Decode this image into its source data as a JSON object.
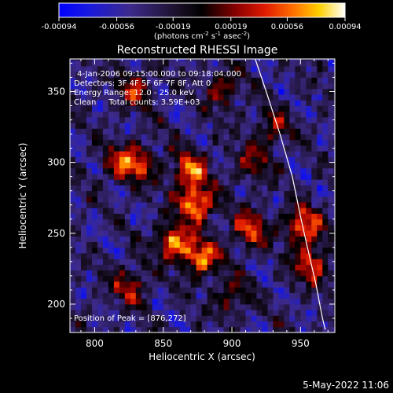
{
  "chart_data": {
    "type": "heatmap",
    "title": "Reconstructed RHESSI Image",
    "xlabel": "Heliocentric X (arcsec)",
    "ylabel": "Heliocentric Y (arcsec)",
    "x_ticks": [
      800,
      850,
      900,
      950
    ],
    "x_tick_labels": [
      "800",
      "850",
      "900",
      "950"
    ],
    "y_ticks": [
      200,
      250,
      300,
      350
    ],
    "y_tick_labels": [
      "200",
      "250",
      "300",
      "350"
    ],
    "xlim": [
      782,
      975
    ],
    "ylim": [
      180,
      373
    ],
    "colorbar": {
      "colormap": "blue-black-red-yellow-white",
      "range": [
        -0.00094,
        0.00094
      ],
      "tick_values": [
        -0.00094,
        -0.00056,
        -0.00019,
        0.00019,
        0.00056,
        0.00094
      ],
      "tick_labels": [
        "-0.00094",
        "-0.00056",
        "-0.00019",
        "0.00019",
        "0.00056",
        "0.00094"
      ],
      "units_main": "(photons cm",
      "units_exp1": "-2",
      "units_mid": " s",
      "units_exp2": "-1",
      "units_end": " asec",
      "units_exp3": "-2",
      "units_close": ")"
    },
    "annotations": {
      "time": "4-Jan-2006 09:15:00.000 to 09:18:04.000",
      "detectors": "Detectors: 3F 4F 5F 6F 7F 8F, Att 0",
      "energy": "Energy Range: 12.0 - 25.0 keV",
      "clean": "Clean     Total counts: 3.59E+03",
      "peak": "Position of Peak = [876,272]"
    },
    "peak_position": [
      876,
      272
    ],
    "solar_limb": [
      [
        917,
        373
      ],
      [
        925,
        350
      ],
      [
        935,
        320
      ],
      [
        944,
        290
      ],
      [
        950,
        262
      ],
      [
        955,
        240
      ],
      [
        961,
        215
      ],
      [
        966,
        190
      ],
      [
        968,
        182
      ]
    ],
    "bright_sources": [
      {
        "x": 874,
        "y": 272,
        "level": 1.0
      },
      {
        "x": 869,
        "y": 295,
        "level": 0.75
      },
      {
        "x": 858,
        "y": 244,
        "level": 0.85
      },
      {
        "x": 878,
        "y": 233,
        "level": 0.85
      },
      {
        "x": 913,
        "y": 253,
        "level": 0.7
      },
      {
        "x": 952,
        "y": 255,
        "level": 0.85
      },
      {
        "x": 958,
        "y": 228,
        "level": 0.7
      },
      {
        "x": 833,
        "y": 300,
        "level": 0.6
      },
      {
        "x": 830,
        "y": 352,
        "level": 0.55
      },
      {
        "x": 818,
        "y": 300,
        "level": 0.5
      },
      {
        "x": 825,
        "y": 213,
        "level": 0.55
      },
      {
        "x": 893,
        "y": 352,
        "level": 0.5
      },
      {
        "x": 915,
        "y": 300,
        "level": 0.45
      },
      {
        "x": 930,
        "y": 325,
        "level": 0.45
      },
      {
        "x": 900,
        "y": 205,
        "level": 0.45
      }
    ]
  },
  "footer": {
    "date": "5-May-2022 11:06"
  }
}
